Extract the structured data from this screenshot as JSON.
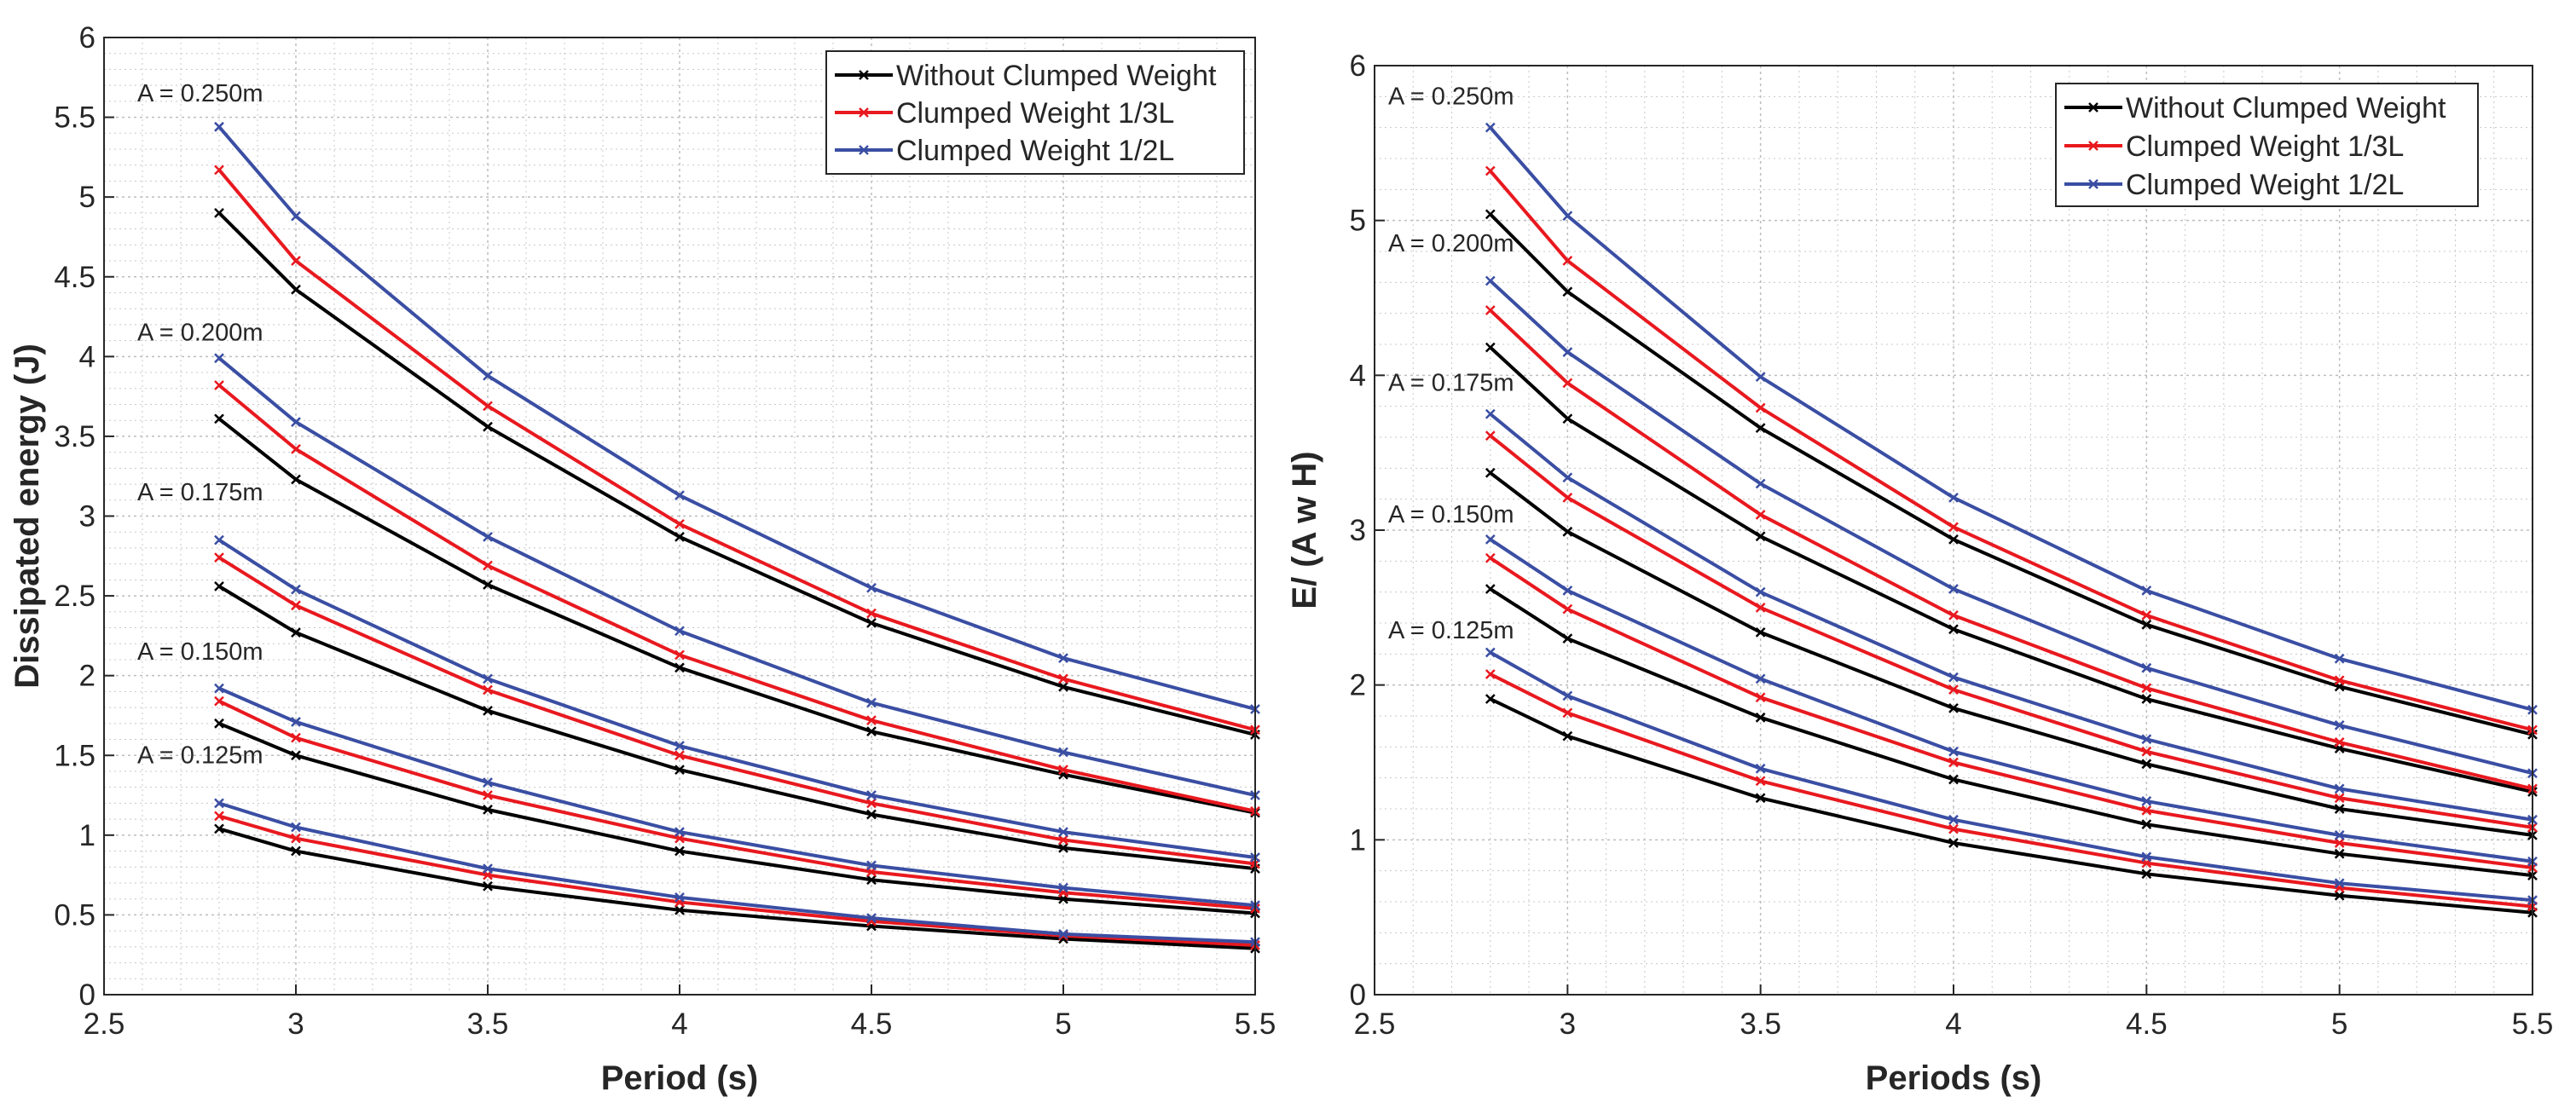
{
  "chart_data": [
    {
      "type": "line",
      "xlabel": "Period (s)",
      "ylabel": "Dissipated energy (J)",
      "xlim": [
        2.5,
        5.5
      ],
      "ylim": [
        0,
        6
      ],
      "xticks": [
        2.5,
        3,
        3.5,
        4,
        4.5,
        5,
        5.5
      ],
      "xtick_labels": [
        "2.5",
        "3",
        "3.5",
        "4",
        "4.5",
        "5",
        "5.5"
      ],
      "yticks": [
        0,
        0.5,
        1,
        1.5,
        2,
        2.5,
        3,
        3.5,
        4,
        4.5,
        5,
        5.5,
        6
      ],
      "ytick_labels": [
        "0",
        "0.5",
        "1",
        "1.5",
        "2",
        "2.5",
        "3",
        "3.5",
        "4",
        "4.5",
        "5",
        "5.5",
        "6"
      ],
      "grid": true,
      "minor_grid": true,
      "legend_position": "top-right",
      "x": [
        2.8,
        3,
        3.5,
        4,
        4.5,
        5,
        5.5
      ],
      "legend": [
        {
          "name": "Without Clumped Weight",
          "color": "#000000"
        },
        {
          "name": "Clumped Weight 1/3L",
          "color": "#e8191f"
        },
        {
          "name": "Clumped Weight 1/2L",
          "color": "#3a4ea3"
        }
      ],
      "groups": [
        {
          "annotation": "A = 0.250m",
          "annot_y": 5.6,
          "series": [
            {
              "values": [
                4.9,
                4.42,
                3.56,
                2.87,
                2.33,
                1.93,
                1.63
              ],
              "color": "#000000"
            },
            {
              "values": [
                5.17,
                4.6,
                3.69,
                2.95,
                2.39,
                1.98,
                1.66
              ],
              "color": "#e8191f"
            },
            {
              "values": [
                5.44,
                4.88,
                3.88,
                3.13,
                2.55,
                2.11,
                1.79
              ],
              "color": "#3a4ea3"
            }
          ]
        },
        {
          "annotation": "A = 0.200m",
          "annot_y": 4.1,
          "series": [
            {
              "values": [
                3.61,
                3.23,
                2.57,
                2.05,
                1.65,
                1.38,
                1.14
              ],
              "color": "#000000"
            },
            {
              "values": [
                3.82,
                3.42,
                2.69,
                2.13,
                1.72,
                1.41,
                1.15
              ],
              "color": "#e8191f"
            },
            {
              "values": [
                3.99,
                3.59,
                2.87,
                2.28,
                1.83,
                1.52,
                1.25
              ],
              "color": "#3a4ea3"
            }
          ]
        },
        {
          "annotation": "A = 0.175m",
          "annot_y": 3.1,
          "series": [
            {
              "values": [
                2.56,
                2.27,
                1.78,
                1.41,
                1.13,
                0.92,
                0.79
              ],
              "color": "#000000"
            },
            {
              "values": [
                2.74,
                2.44,
                1.91,
                1.5,
                1.2,
                0.97,
                0.82
              ],
              "color": "#e8191f"
            },
            {
              "values": [
                2.85,
                2.54,
                1.98,
                1.56,
                1.25,
                1.02,
                0.86
              ],
              "color": "#3a4ea3"
            }
          ]
        },
        {
          "annotation": "A = 0.150m",
          "annot_y": 2.1,
          "series": [
            {
              "values": [
                1.7,
                1.5,
                1.16,
                0.9,
                0.72,
                0.6,
                0.51
              ],
              "color": "#000000"
            },
            {
              "values": [
                1.84,
                1.61,
                1.25,
                0.98,
                0.77,
                0.64,
                0.54
              ],
              "color": "#e8191f"
            },
            {
              "values": [
                1.92,
                1.71,
                1.33,
                1.02,
                0.81,
                0.67,
                0.56
              ],
              "color": "#3a4ea3"
            }
          ]
        },
        {
          "annotation": "A = 0.125m",
          "annot_y": 1.45,
          "series": [
            {
              "values": [
                1.04,
                0.9,
                0.68,
                0.53,
                0.43,
                0.35,
                0.29
              ],
              "color": "#000000"
            },
            {
              "values": [
                1.12,
                0.98,
                0.75,
                0.58,
                0.46,
                0.37,
                0.31
              ],
              "color": "#e8191f"
            },
            {
              "values": [
                1.2,
                1.05,
                0.79,
                0.61,
                0.48,
                0.38,
                0.33
              ],
              "color": "#3a4ea3"
            }
          ]
        }
      ]
    },
    {
      "type": "line",
      "xlabel": "Periods (s)",
      "ylabel": "E/ (A w H)",
      "xlim": [
        2.5,
        5.5
      ],
      "ylim": [
        0,
        6
      ],
      "xticks": [
        2.5,
        3,
        3.5,
        4,
        4.5,
        5,
        5.5
      ],
      "xtick_labels": [
        "2.5",
        "3",
        "3.5",
        "4",
        "4.5",
        "5",
        "5.5"
      ],
      "yticks": [
        0,
        1,
        2,
        3,
        4,
        5,
        6
      ],
      "ytick_labels": [
        "0",
        "1",
        "2",
        "3",
        "4",
        "5",
        "6"
      ],
      "grid": true,
      "minor_grid": true,
      "legend_position": "top-right",
      "x": [
        2.8,
        3,
        3.5,
        4,
        4.5,
        5,
        5.5
      ],
      "legend": [
        {
          "name": "Without Clumped Weight",
          "color": "#000000"
        },
        {
          "name": "Clumped Weight 1/3L",
          "color": "#e8191f"
        },
        {
          "name": "Clumped Weight 1/2L",
          "color": "#3a4ea3"
        }
      ],
      "groups": [
        {
          "annotation": "A = 0.250m",
          "annot_y": 5.75,
          "series": [
            {
              "values": [
                5.04,
                4.54,
                3.66,
                2.94,
                2.39,
                1.99,
                1.68
              ],
              "color": "#000000"
            },
            {
              "values": [
                5.32,
                4.74,
                3.79,
                3.02,
                2.45,
                2.03,
                1.71
              ],
              "color": "#e8191f"
            },
            {
              "values": [
                5.6,
                5.03,
                3.99,
                3.21,
                2.61,
                2.17,
                1.84
              ],
              "color": "#3a4ea3"
            }
          ]
        },
        {
          "annotation": "A = 0.200m",
          "annot_y": 4.8,
          "series": [
            {
              "values": [
                4.18,
                3.72,
                2.96,
                2.36,
                1.91,
                1.59,
                1.31
              ],
              "color": "#000000"
            },
            {
              "values": [
                4.42,
                3.95,
                3.1,
                2.45,
                1.98,
                1.63,
                1.33
              ],
              "color": "#e8191f"
            },
            {
              "values": [
                4.61,
                4.15,
                3.3,
                2.62,
                2.11,
                1.74,
                1.43
              ],
              "color": "#3a4ea3"
            }
          ]
        },
        {
          "annotation": "A = 0.175m",
          "annot_y": 3.9,
          "series": [
            {
              "values": [
                3.37,
                2.99,
                2.34,
                1.85,
                1.49,
                1.2,
                1.03
              ],
              "color": "#000000"
            },
            {
              "values": [
                3.61,
                3.21,
                2.5,
                1.97,
                1.57,
                1.27,
                1.08
              ],
              "color": "#e8191f"
            },
            {
              "values": [
                3.75,
                3.34,
                2.6,
                2.05,
                1.65,
                1.33,
                1.13
              ],
              "color": "#3a4ea3"
            }
          ]
        },
        {
          "annotation": "A = 0.150m",
          "annot_y": 3.05,
          "series": [
            {
              "values": [
                2.62,
                2.3,
                1.79,
                1.39,
                1.1,
                0.91,
                0.77
              ],
              "color": "#000000"
            },
            {
              "values": [
                2.82,
                2.49,
                1.92,
                1.5,
                1.19,
                0.98,
                0.82
              ],
              "color": "#e8191f"
            },
            {
              "values": [
                2.94,
                2.61,
                2.04,
                1.57,
                1.25,
                1.03,
                0.86
              ],
              "color": "#3a4ea3"
            }
          ]
        },
        {
          "annotation": "A = 0.125m",
          "annot_y": 2.3,
          "series": [
            {
              "values": [
                1.91,
                1.67,
                1.27,
                0.98,
                0.78,
                0.64,
                0.53
              ],
              "color": "#000000"
            },
            {
              "values": [
                2.07,
                1.82,
                1.38,
                1.07,
                0.85,
                0.69,
                0.57
              ],
              "color": "#e8191f"
            },
            {
              "values": [
                2.21,
                1.93,
                1.46,
                1.13,
                0.89,
                0.72,
                0.61
              ],
              "color": "#3a4ea3"
            }
          ]
        }
      ]
    }
  ]
}
